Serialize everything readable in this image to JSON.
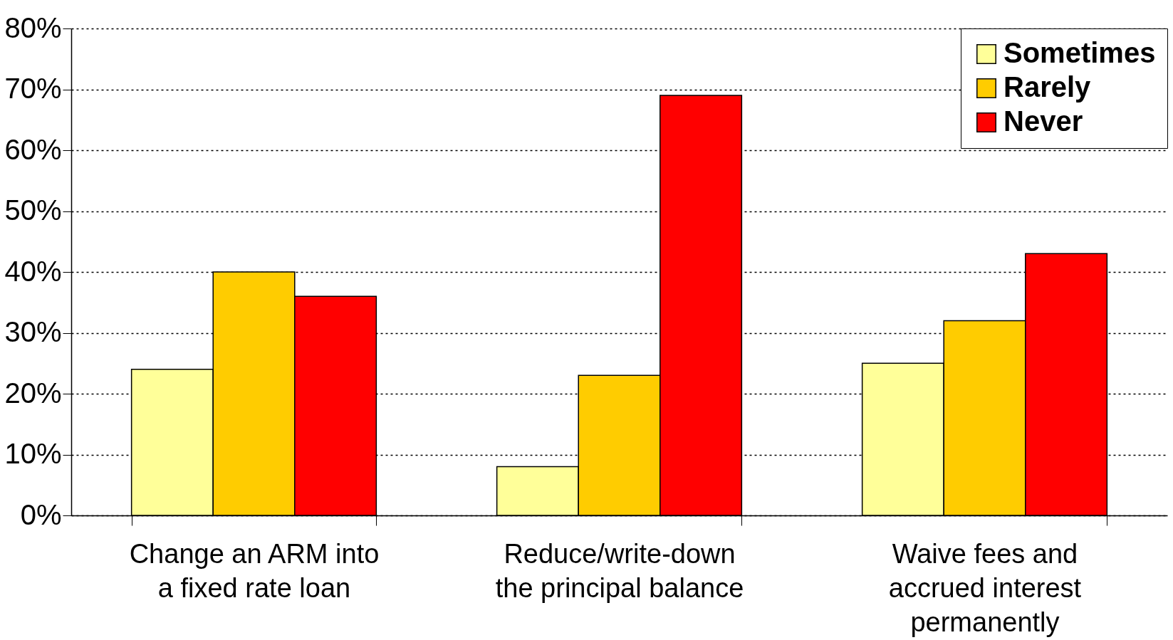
{
  "chart_data": {
    "type": "bar",
    "categories": [
      "Change an ARM into\na fixed rate loan",
      "Reduce/write-down\nthe principal balance",
      "Waive fees and\naccrued interest\npermanently"
    ],
    "series": [
      {
        "name": "Sometimes",
        "color": "#ffff99",
        "values": [
          24,
          8,
          25
        ]
      },
      {
        "name": "Rarely",
        "color": "#ffcc00",
        "values": [
          40,
          23,
          32
        ]
      },
      {
        "name": "Never",
        "color": "#ff0000",
        "values": [
          36,
          69,
          43
        ]
      }
    ],
    "ylim": [
      0,
      80
    ],
    "yticks": [
      {
        "value": 0,
        "label": "0%"
      },
      {
        "value": 10,
        "label": "10%"
      },
      {
        "value": 20,
        "label": "20%"
      },
      {
        "value": 30,
        "label": "30%"
      },
      {
        "value": 40,
        "label": "40%"
      },
      {
        "value": 50,
        "label": "50%"
      },
      {
        "value": 60,
        "label": "60%"
      },
      {
        "value": 70,
        "label": "70%"
      },
      {
        "value": 80,
        "label": "80%"
      }
    ],
    "grid": "y",
    "legend": "top right"
  }
}
